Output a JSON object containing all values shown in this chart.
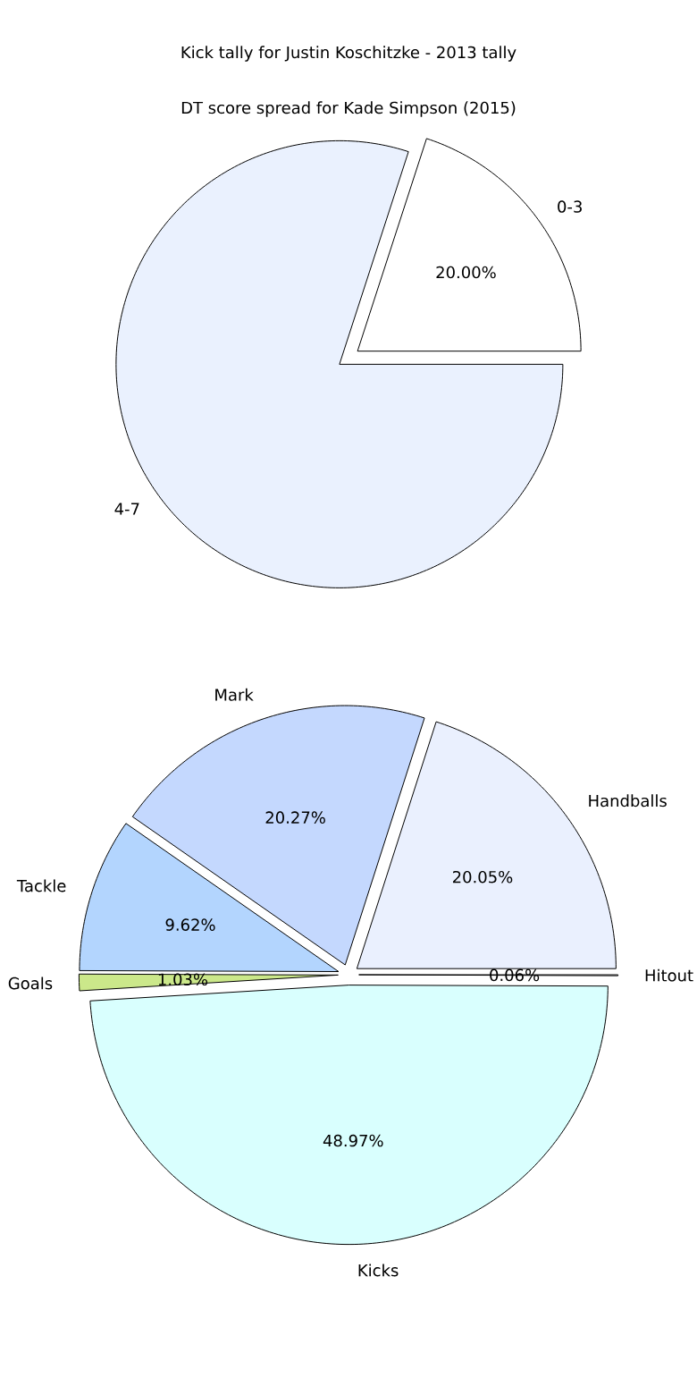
{
  "chart_data": [
    {
      "type": "pie",
      "title": "DT score spread for Kade Simpson (2015)",
      "categories": [
        "0-3",
        "4-7"
      ],
      "values": [
        20,
        80
      ],
      "colors": [
        "#ffffff",
        "#eaf1fe"
      ],
      "value_labels": [
        "20.00%",
        null
      ]
    },
    {
      "type": "pie",
      "title": "Kick tally for Justin Koschitzke - 2013 tally",
      "categories": [
        "Handballs",
        "Mark",
        "Tackle",
        "Goals",
        "Kicks",
        "Hitout"
      ],
      "values": [
        20.05,
        20.27,
        9.62,
        1.03,
        48.97,
        0.06
      ],
      "colors": [
        "#eaf0fe",
        "#c4d8fe",
        "#b3d5fe",
        "#cbe88a",
        "#d9fffe",
        "#ffffff"
      ],
      "value_labels": [
        "20.05%",
        "20.27%",
        "9.62%",
        "1.03%",
        "48.97%",
        "0.06%"
      ]
    }
  ]
}
